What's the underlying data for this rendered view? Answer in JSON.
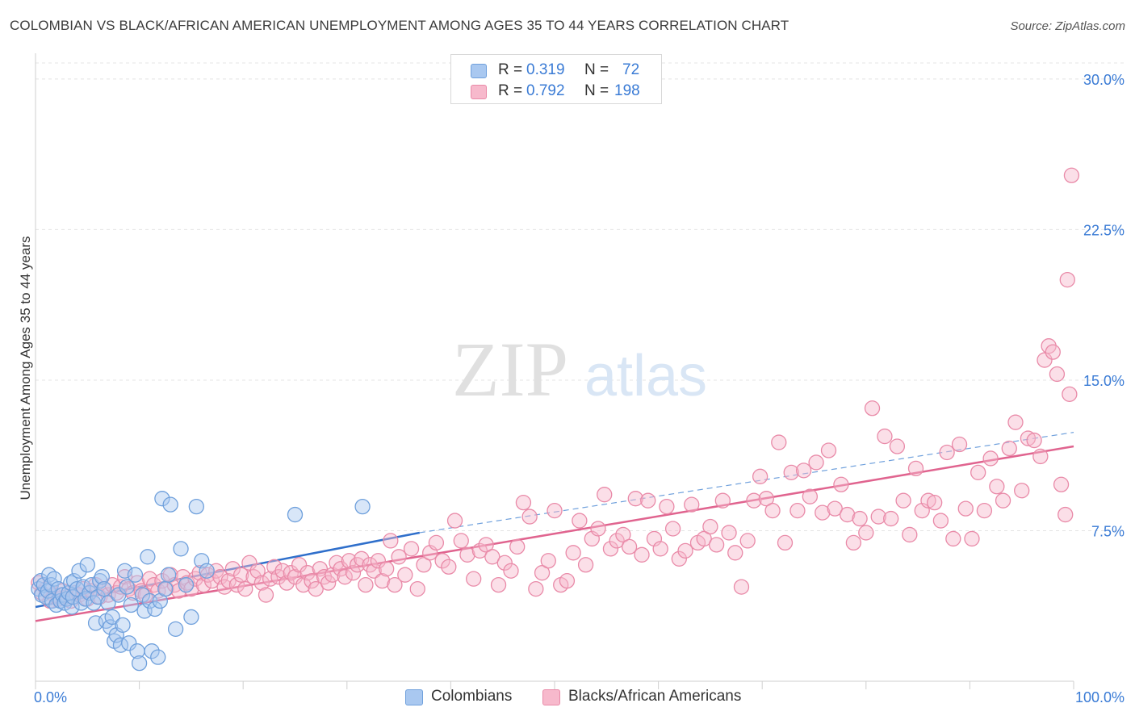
{
  "title": "COLOMBIAN VS BLACK/AFRICAN AMERICAN UNEMPLOYMENT AMONG AGES 35 TO 44 YEARS CORRELATION CHART",
  "source": "Source: ZipAtlas.com",
  "watermark": {
    "zip": "ZIP",
    "atlas": "atlas"
  },
  "legend": {
    "rows": [
      {
        "r_label": "R =",
        "r_value": "0.319",
        "n_label": "N =",
        "n_value": "72",
        "color": "#a9c8f0",
        "border": "#6fa0dc"
      },
      {
        "r_label": "R =",
        "r_value": "0.792",
        "n_label": "N =",
        "n_value": "198",
        "color": "#f7b9cc",
        "border": "#e98aa8"
      }
    ]
  },
  "bottom_legend": [
    {
      "label": "Colombians",
      "color": "#a9c8f0",
      "border": "#6fa0dc"
    },
    {
      "label": "Blacks/African Americans",
      "color": "#f7b9cc",
      "border": "#e98aa8"
    }
  ],
  "chart_data": {
    "type": "scatter",
    "title": "COLOMBIAN VS BLACK/AFRICAN AMERICAN UNEMPLOYMENT AMONG AGES 35 TO 44 YEARS CORRELATION CHART",
    "xlabel": "",
    "ylabel": "Unemployment Among Ages 35 to 44 years",
    "xlim": [
      0,
      100
    ],
    "ylim": [
      0,
      30
    ],
    "x_tick_labels": [
      {
        "value": 0,
        "label": "0.0%"
      },
      {
        "value": 100,
        "label": "100.0%"
      }
    ],
    "y_tick_labels": [
      {
        "value": 7.5,
        "label": "7.5%"
      },
      {
        "value": 15,
        "label": "15.0%"
      },
      {
        "value": 22.5,
        "label": "22.5%"
      },
      {
        "value": 30,
        "label": "30.0%"
      }
    ],
    "grid": "horizontal dashed",
    "legend_position": "top-center",
    "series": [
      {
        "name": "Colombians",
        "color": "#6fa0dc",
        "fill": "#a9c8f0",
        "r": 0.319,
        "n": 72,
        "trend": {
          "x": [
            0,
            37
          ],
          "y": [
            3.7,
            7.4
          ],
          "extended_to": [
            100,
            12.4
          ]
        },
        "points": [
          [
            0.3,
            4.6
          ],
          [
            0.5,
            5.0
          ],
          [
            0.6,
            4.3
          ],
          [
            0.8,
            4.8
          ],
          [
            1.0,
            4.2
          ],
          [
            1.2,
            4.5
          ],
          [
            1.3,
            5.3
          ],
          [
            1.5,
            4.8
          ],
          [
            1.6,
            4.0
          ],
          [
            1.8,
            5.1
          ],
          [
            2.0,
            3.8
          ],
          [
            2.2,
            4.6
          ],
          [
            2.4,
            4.0
          ],
          [
            2.6,
            4.3
          ],
          [
            2.8,
            3.9
          ],
          [
            3.0,
            4.1
          ],
          [
            3.2,
            4.4
          ],
          [
            3.4,
            4.9
          ],
          [
            3.5,
            3.7
          ],
          [
            3.6,
            4.2
          ],
          [
            3.7,
            5.0
          ],
          [
            4.0,
            4.6
          ],
          [
            4.2,
            5.5
          ],
          [
            4.4,
            3.9
          ],
          [
            4.6,
            4.7
          ],
          [
            4.8,
            4.1
          ],
          [
            5.0,
            5.8
          ],
          [
            5.2,
            4.4
          ],
          [
            5.4,
            4.8
          ],
          [
            5.6,
            3.9
          ],
          [
            5.8,
            2.9
          ],
          [
            6.0,
            4.2
          ],
          [
            6.2,
            5.0
          ],
          [
            6.4,
            5.2
          ],
          [
            6.6,
            4.6
          ],
          [
            6.8,
            3.0
          ],
          [
            7.0,
            3.9
          ],
          [
            7.2,
            2.7
          ],
          [
            7.4,
            3.2
          ],
          [
            7.6,
            2.0
          ],
          [
            7.8,
            2.3
          ],
          [
            8.0,
            4.3
          ],
          [
            8.2,
            1.8
          ],
          [
            8.4,
            2.8
          ],
          [
            8.6,
            5.5
          ],
          [
            8.8,
            4.7
          ],
          [
            9.0,
            1.9
          ],
          [
            9.2,
            3.8
          ],
          [
            9.6,
            5.3
          ],
          [
            9.8,
            1.5
          ],
          [
            10.0,
            0.9
          ],
          [
            10.3,
            4.3
          ],
          [
            10.5,
            3.5
          ],
          [
            10.8,
            6.2
          ],
          [
            11.0,
            4.0
          ],
          [
            11.2,
            1.5
          ],
          [
            11.5,
            3.6
          ],
          [
            11.8,
            1.2
          ],
          [
            12.0,
            4.0
          ],
          [
            12.2,
            9.1
          ],
          [
            12.5,
            4.6
          ],
          [
            12.8,
            5.3
          ],
          [
            13.0,
            8.8
          ],
          [
            13.5,
            2.6
          ],
          [
            14.0,
            6.6
          ],
          [
            14.5,
            4.8
          ],
          [
            15.0,
            3.2
          ],
          [
            15.5,
            8.7
          ],
          [
            16.0,
            6.0
          ],
          [
            16.5,
            5.5
          ],
          [
            25.0,
            8.3
          ],
          [
            31.5,
            8.7
          ]
        ]
      },
      {
        "name": "Blacks/African Americans",
        "color": "#e98aa8",
        "fill": "#f7b9cc",
        "r": 0.792,
        "n": 198,
        "trend": {
          "x": [
            0,
            100
          ],
          "y": [
            3.0,
            11.7
          ]
        },
        "points": [
          [
            0.3,
            4.9
          ],
          [
            0.6,
            4.4
          ],
          [
            1.0,
            4.6
          ],
          [
            1.4,
            4.0
          ],
          [
            1.8,
            4.3
          ],
          [
            2.2,
            4.1
          ],
          [
            2.6,
            4.5
          ],
          [
            3.0,
            4.2
          ],
          [
            3.4,
            4.0
          ],
          [
            3.8,
            4.4
          ],
          [
            4.2,
            4.3
          ],
          [
            4.6,
            4.6
          ],
          [
            5.0,
            4.1
          ],
          [
            5.4,
            4.5
          ],
          [
            5.8,
            4.8
          ],
          [
            6.2,
            4.2
          ],
          [
            6.6,
            4.6
          ],
          [
            7.0,
            4.3
          ],
          [
            7.4,
            4.8
          ],
          [
            7.8,
            4.4
          ],
          [
            8.2,
            4.7
          ],
          [
            8.6,
            5.2
          ],
          [
            9.0,
            4.6
          ],
          [
            9.4,
            4.4
          ],
          [
            9.8,
            4.9
          ],
          [
            10.2,
            4.5
          ],
          [
            10.6,
            4.3
          ],
          [
            11.0,
            5.1
          ],
          [
            11.4,
            4.8
          ],
          [
            11.8,
            4.5
          ],
          [
            12.2,
            5.0
          ],
          [
            12.6,
            4.6
          ],
          [
            13.0,
            5.3
          ],
          [
            13.4,
            4.8
          ],
          [
            13.8,
            4.5
          ],
          [
            14.2,
            5.2
          ],
          [
            14.6,
            4.9
          ],
          [
            15.0,
            4.6
          ],
          [
            15.4,
            5.1
          ],
          [
            15.8,
            5.4
          ],
          [
            16.2,
            4.8
          ],
          [
            16.6,
            5.3
          ],
          [
            17.0,
            5.0
          ],
          [
            17.4,
            5.5
          ],
          [
            17.8,
            5.2
          ],
          [
            18.2,
            4.7
          ],
          [
            18.6,
            5.0
          ],
          [
            19.0,
            5.6
          ],
          [
            19.4,
            4.8
          ],
          [
            19.8,
            5.3
          ],
          [
            20.2,
            4.6
          ],
          [
            20.6,
            5.9
          ],
          [
            21.0,
            5.2
          ],
          [
            21.4,
            5.5
          ],
          [
            21.8,
            4.9
          ],
          [
            22.2,
            4.3
          ],
          [
            22.6,
            5.1
          ],
          [
            23.0,
            5.7
          ],
          [
            23.4,
            5.2
          ],
          [
            23.8,
            5.5
          ],
          [
            24.2,
            4.9
          ],
          [
            24.6,
            5.4
          ],
          [
            25.0,
            5.2
          ],
          [
            25.4,
            5.8
          ],
          [
            25.8,
            4.8
          ],
          [
            26.2,
            5.4
          ],
          [
            26.6,
            5.0
          ],
          [
            27.0,
            4.6
          ],
          [
            27.4,
            5.6
          ],
          [
            27.8,
            5.2
          ],
          [
            28.2,
            4.9
          ],
          [
            28.6,
            5.3
          ],
          [
            29.0,
            5.9
          ],
          [
            29.4,
            5.6
          ],
          [
            29.8,
            5.2
          ],
          [
            30.2,
            6.0
          ],
          [
            30.6,
            5.4
          ],
          [
            31.0,
            5.8
          ],
          [
            31.4,
            6.1
          ],
          [
            31.8,
            4.8
          ],
          [
            32.2,
            5.8
          ],
          [
            32.6,
            5.5
          ],
          [
            33.0,
            6.0
          ],
          [
            33.4,
            5.0
          ],
          [
            33.8,
            5.6
          ],
          [
            34.2,
            7.0
          ],
          [
            34.6,
            4.8
          ],
          [
            35.0,
            6.2
          ],
          [
            35.6,
            5.3
          ],
          [
            36.2,
            6.6
          ],
          [
            36.8,
            4.6
          ],
          [
            37.4,
            5.8
          ],
          [
            38.0,
            6.4
          ],
          [
            38.6,
            6.9
          ],
          [
            39.2,
            6.0
          ],
          [
            39.8,
            5.7
          ],
          [
            40.4,
            8.0
          ],
          [
            41.0,
            7.0
          ],
          [
            41.6,
            6.3
          ],
          [
            42.2,
            5.1
          ],
          [
            42.8,
            6.5
          ],
          [
            43.4,
            6.8
          ],
          [
            44.0,
            6.2
          ],
          [
            44.6,
            4.8
          ],
          [
            45.2,
            5.9
          ],
          [
            45.8,
            5.5
          ],
          [
            46.4,
            6.7
          ],
          [
            47.0,
            8.9
          ],
          [
            47.6,
            8.2
          ],
          [
            48.2,
            4.6
          ],
          [
            48.8,
            5.4
          ],
          [
            49.4,
            6.0
          ],
          [
            50.0,
            8.5
          ],
          [
            50.6,
            4.8
          ],
          [
            51.2,
            5.0
          ],
          [
            51.8,
            6.4
          ],
          [
            52.4,
            8.0
          ],
          [
            53.0,
            5.8
          ],
          [
            53.6,
            7.1
          ],
          [
            54.2,
            7.6
          ],
          [
            54.8,
            9.3
          ],
          [
            55.4,
            6.6
          ],
          [
            56.0,
            7.0
          ],
          [
            56.6,
            7.3
          ],
          [
            57.2,
            6.7
          ],
          [
            57.8,
            9.1
          ],
          [
            58.4,
            6.3
          ],
          [
            59.0,
            9.0
          ],
          [
            59.6,
            7.1
          ],
          [
            60.2,
            6.6
          ],
          [
            60.8,
            8.7
          ],
          [
            61.4,
            7.6
          ],
          [
            62.0,
            6.1
          ],
          [
            62.6,
            6.5
          ],
          [
            63.2,
            8.8
          ],
          [
            63.8,
            6.9
          ],
          [
            64.4,
            7.1
          ],
          [
            65.0,
            7.7
          ],
          [
            65.6,
            6.8
          ],
          [
            66.2,
            9.0
          ],
          [
            66.8,
            7.4
          ],
          [
            67.4,
            6.4
          ],
          [
            68.0,
            4.7
          ],
          [
            68.6,
            7.0
          ],
          [
            69.2,
            9.0
          ],
          [
            69.8,
            10.2
          ],
          [
            70.4,
            9.1
          ],
          [
            71.0,
            8.5
          ],
          [
            71.6,
            11.9
          ],
          [
            72.2,
            6.9
          ],
          [
            72.8,
            10.4
          ],
          [
            73.4,
            8.5
          ],
          [
            74.0,
            10.5
          ],
          [
            74.6,
            9.2
          ],
          [
            75.2,
            10.9
          ],
          [
            75.8,
            8.4
          ],
          [
            76.4,
            11.5
          ],
          [
            77.0,
            8.6
          ],
          [
            77.6,
            9.8
          ],
          [
            78.2,
            8.3
          ],
          [
            78.8,
            6.9
          ],
          [
            79.4,
            8.1
          ],
          [
            80.0,
            7.4
          ],
          [
            80.6,
            13.6
          ],
          [
            81.2,
            8.2
          ],
          [
            81.8,
            12.2
          ],
          [
            82.4,
            8.1
          ],
          [
            83.0,
            11.7
          ],
          [
            83.6,
            9.0
          ],
          [
            84.2,
            7.3
          ],
          [
            84.8,
            10.6
          ],
          [
            85.4,
            8.5
          ],
          [
            86.0,
            9.0
          ],
          [
            86.6,
            8.9
          ],
          [
            87.2,
            8.0
          ],
          [
            87.8,
            11.4
          ],
          [
            88.4,
            7.1
          ],
          [
            89.0,
            11.8
          ],
          [
            89.6,
            8.6
          ],
          [
            90.2,
            7.1
          ],
          [
            90.8,
            10.4
          ],
          [
            91.4,
            8.5
          ],
          [
            92.0,
            11.1
          ],
          [
            92.6,
            9.7
          ],
          [
            93.2,
            9.0
          ],
          [
            93.8,
            11.6
          ],
          [
            94.4,
            12.9
          ],
          [
            95.0,
            9.5
          ],
          [
            95.6,
            12.1
          ],
          [
            96.2,
            12.0
          ],
          [
            96.8,
            11.2
          ],
          [
            97.2,
            16.0
          ],
          [
            97.6,
            16.7
          ],
          [
            98.0,
            16.4
          ],
          [
            98.4,
            15.3
          ],
          [
            98.8,
            9.8
          ],
          [
            99.2,
            8.3
          ],
          [
            99.4,
            20.0
          ],
          [
            99.6,
            14.3
          ],
          [
            99.8,
            25.2
          ]
        ]
      }
    ]
  }
}
